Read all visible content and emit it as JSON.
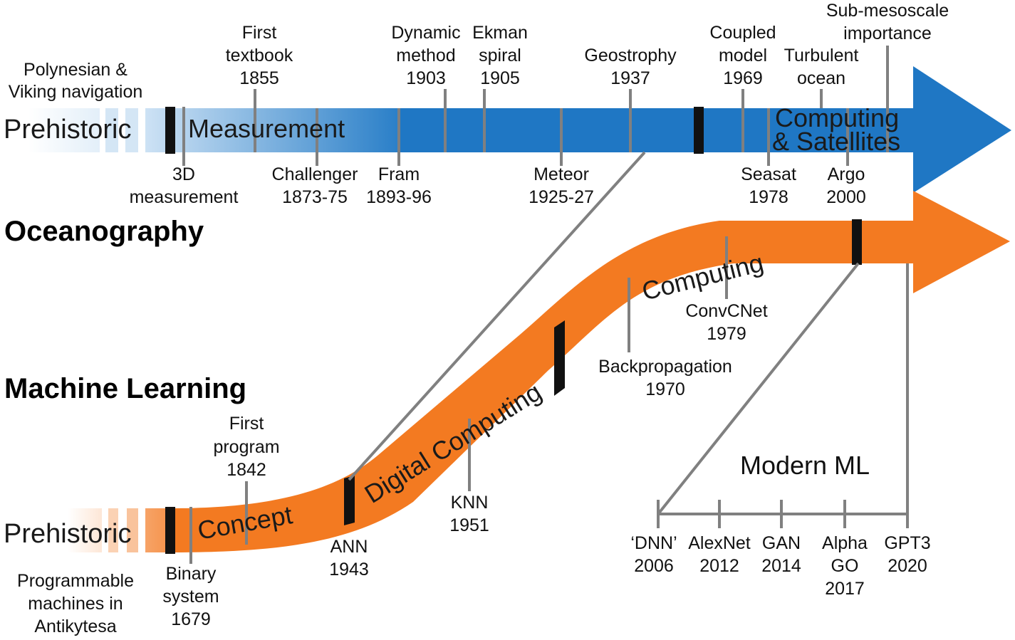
{
  "colors": {
    "ocean": "#1f77c4",
    "ml": "#f37a21",
    "tick": "#808080",
    "divider": "#111111"
  },
  "headings": {
    "ocean": "Oceanography",
    "ml": "Machine Learning"
  },
  "ocean": {
    "eras": {
      "prehistoric": "Prehistoric",
      "measurement": "Measurement",
      "computing": [
        "Computing",
        "& Satellites"
      ]
    },
    "top_labels": {
      "polynesian": [
        "Polynesian &",
        "Viking navigation"
      ],
      "first_textbook": [
        "First",
        "textbook",
        "1855"
      ],
      "dynamic_method": [
        "Dynamic",
        "method",
        "1903"
      ],
      "ekman": [
        "Ekman",
        "spiral",
        "1905"
      ],
      "geostrophy": [
        "Geostrophy",
        "1937"
      ],
      "coupled_model": [
        "Coupled",
        "model",
        "1969"
      ],
      "turbulent_ocean": [
        "Turbulent",
        "ocean"
      ],
      "submesoscale": [
        "Sub-mesoscale",
        "importance"
      ]
    },
    "bottom_labels": {
      "measurement_3d": [
        "3D",
        "measurement"
      ],
      "challenger": [
        "Challenger",
        "1873-75"
      ],
      "fram": [
        "Fram",
        "1893-96"
      ],
      "meteor": [
        "Meteor",
        "1925-27"
      ],
      "seasat": [
        "Seasat",
        "1978"
      ],
      "argo": [
        "Argo",
        "2000"
      ]
    }
  },
  "ml": {
    "eras": {
      "prehistoric": "Prehistoric",
      "concept": "Concept",
      "digital": "Digital Computing",
      "computing": "Computing"
    },
    "labels": {
      "programmable": [
        "Programmable",
        "machines in",
        "Antikytesa"
      ],
      "binary": [
        "Binary",
        "system",
        "1679"
      ],
      "first_program": [
        "First",
        "program",
        "1842"
      ],
      "ann": [
        "ANN",
        "1943"
      ],
      "knn": [
        "KNN",
        "1951"
      ],
      "backprop": [
        "Backpropagation",
        "1970"
      ],
      "convcnet": [
        "ConvCNet",
        "1979"
      ]
    },
    "modern": {
      "title": "Modern ML",
      "items": {
        "dnn": [
          "‘DNN’",
          "2006"
        ],
        "alexnet": [
          "AlexNet",
          "2012"
        ],
        "gan": [
          "GAN",
          "2014"
        ],
        "alphago": [
          "Alpha",
          "GO",
          "2017"
        ],
        "gpt3": [
          "GPT3",
          "2020"
        ]
      }
    }
  }
}
